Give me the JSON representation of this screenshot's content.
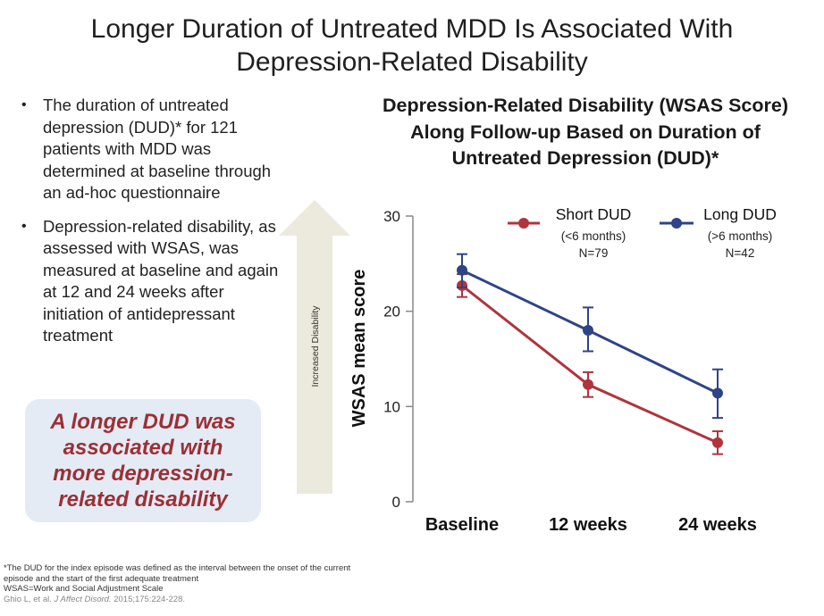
{
  "slide": {
    "title_line1": "Longer Duration of Untreated MDD Is Associated With",
    "title_line2": "Depression-Related Disability"
  },
  "bullets": [
    "The duration of untreated depression (DUD)* for 121 patients with MDD was determined at baseline through an ad-hoc questionnaire",
    "Depression-related disability, as assessed with WSAS, was measured at baseline and again at 12 and 24 weeks after initiation of antidepressant treatment"
  ],
  "callout": {
    "text": "A longer DUD was associated with more depression-related disability"
  },
  "arrow": {
    "label": "Increased Disability"
  },
  "footnote": {
    "line1": "*The DUD for the index episode was defined as the interval between the onset of the current",
    "line2": "episode and the start of the first adequate treatment",
    "line3": "WSAS=Work and Social Adjustment Scale",
    "citation_authors": "Ghio L, et al.",
    "citation_journal": "J Affect Disord.",
    "citation_rest": "2015;175:224-228."
  },
  "chart_data": {
    "type": "line",
    "title_line1": "Depression-Related Disability (WSAS Score)",
    "title_line2": "Along Follow-up Based on Duration of",
    "title_line3": "Untreated Depression (DUD)*",
    "xlabel": "",
    "ylabel": "WSAS mean score",
    "categories": [
      "Baseline",
      "12 weeks",
      "24 weeks"
    ],
    "ylim": [
      0,
      30
    ],
    "yticks": [
      0,
      10,
      20,
      30
    ],
    "series": [
      {
        "name": "Short DUD",
        "sub1": "(<6 months)",
        "sub2": "N=79",
        "color": "#b0343c",
        "values": [
          22.7,
          12.3,
          6.2
        ],
        "err_low": [
          21.5,
          11.0,
          5.0
        ],
        "err_high": [
          23.9,
          13.6,
          7.4
        ]
      },
      {
        "name": "Long DUD",
        "sub1": "(>6 months)",
        "sub2": "N=42",
        "color": "#2e4486",
        "values": [
          24.3,
          18.0,
          11.4
        ],
        "err_low": [
          22.5,
          15.8,
          8.8
        ],
        "err_high": [
          26.0,
          20.4,
          13.9
        ]
      }
    ]
  },
  "colors": {
    "accent_red": "#9c2f35",
    "callout_bg": "#e4ebf5",
    "arrow_fill": "#ece9dd"
  }
}
